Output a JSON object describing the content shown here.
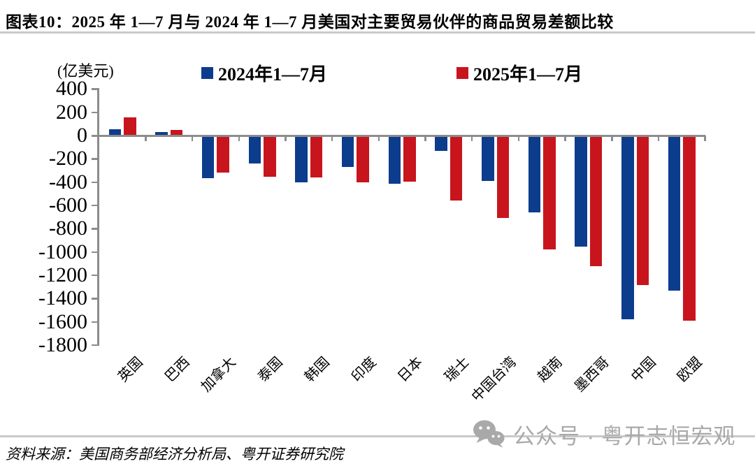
{
  "header": {
    "title": "图表10：2025 年 1—7 月与 2024 年 1—7 月美国对主要贸易伙伴的商品贸易差额比较"
  },
  "chart": {
    "unit_label": "(亿美元)"
  },
  "chart_data": {
    "type": "bar",
    "title": "2025年1—7月与2024年1—7月美国对主要贸易伙伴的商品贸易差额比较",
    "ylabel": "(亿美元)",
    "categories": [
      "英国",
      "巴西",
      "加拿大",
      "泰国",
      "韩国",
      "印度",
      "日本",
      "瑞士",
      "中国台湾",
      "越南",
      "墨西哥",
      "中国",
      "欧盟"
    ],
    "series": [
      {
        "name": "2024年1—7月",
        "color": "#0C3C8C",
        "values": [
          54,
          30,
          -365,
          -243,
          -404,
          -273,
          -416,
          -133,
          -393,
          -662,
          -954,
          -1580,
          -1330
        ]
      },
      {
        "name": "2025年1—7月",
        "color": "#C8151D",
        "values": [
          156,
          47,
          -318,
          -356,
          -362,
          -400,
          -397,
          -556,
          -710,
          -980,
          -1124,
          -1287,
          -1592
        ]
      }
    ],
    "ylim": [
      -1800,
      400
    ],
    "yticks": [
      400,
      200,
      0,
      -200,
      -400,
      -600,
      -800,
      -1000,
      -1200,
      -1400,
      -1600,
      -1800
    ],
    "grid": false,
    "legend_position": "top"
  },
  "footer": {
    "source": "资料来源：美国商务部经济分析局、粤开证券研究院",
    "watermark_text": "公众号 · 粤开志恒宏观"
  }
}
